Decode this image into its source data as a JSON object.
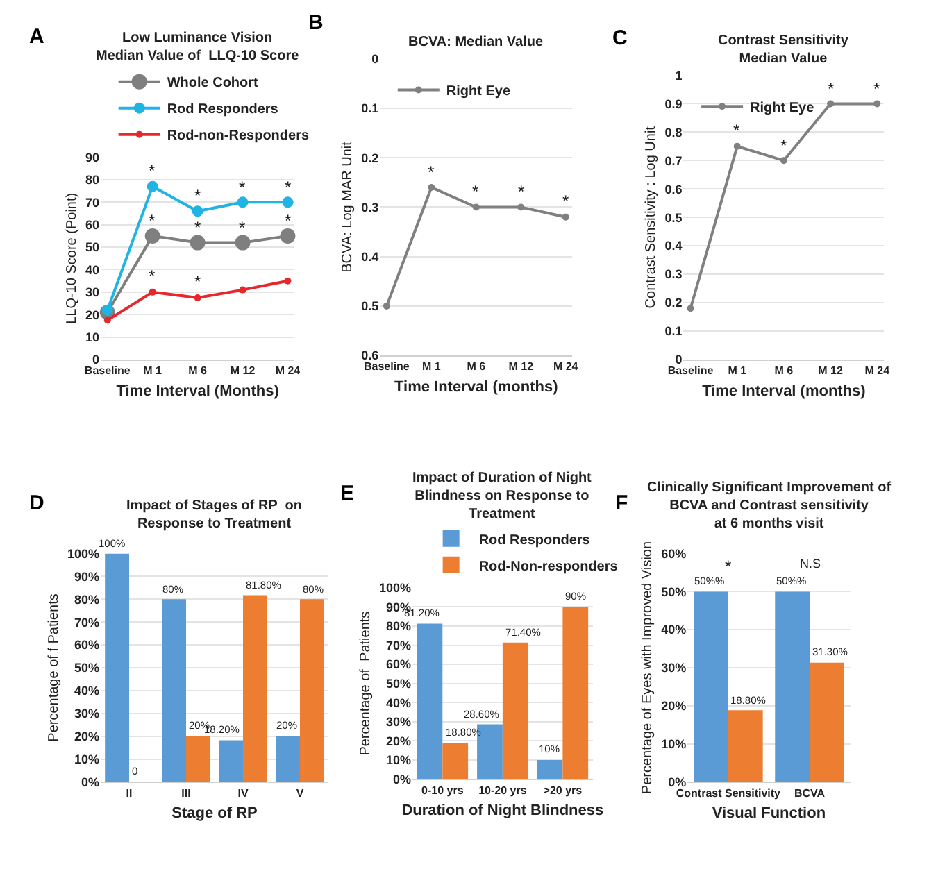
{
  "chart_data": [
    {
      "type": "line",
      "title": "Low Luminance Vision\nMedian Value of  LLQ-10 Score",
      "xlabel": "Time Interval (Months)",
      "ylabel": "LLQ-10 Score (Point)",
      "categories": [
        "Baseline",
        "M 1",
        "M 6",
        "M 12",
        "M 24"
      ],
      "ylim": [
        0,
        90
      ],
      "yticks": [
        0,
        10,
        20,
        30,
        40,
        50,
        60,
        70,
        80,
        90
      ],
      "grid": "y",
      "legend": "top",
      "marker": "circle",
      "line_style": "solid",
      "series": [
        {
          "name": "Whole Cohort",
          "color": "#7f7f7f",
          "values": [
            21,
            55,
            52,
            52,
            55
          ]
        },
        {
          "name": "Rod Responders",
          "color": "#1fb4e4",
          "values": [
            22,
            77,
            66,
            70,
            70
          ]
        },
        {
          "name": "Rod-non-Responders",
          "color": "#e8262b",
          "values": [
            17.5,
            30,
            27.5,
            31,
            35
          ]
        }
      ],
      "annotations": [
        "A",
        {
          "text": "*",
          "x": "M 1",
          "y": 77
        },
        {
          "text": "*",
          "x": "M 6",
          "y": 66
        },
        {
          "text": "*",
          "x": "M 12",
          "y": 70
        },
        {
          "text": "*",
          "x": "M 24",
          "y": 70
        },
        {
          "text": "*",
          "x": "M 1",
          "y": 55
        },
        {
          "text": "*",
          "x": "M 6",
          "y": 52
        },
        {
          "text": "*",
          "x": "M 12",
          "y": 52
        },
        {
          "text": "*",
          "x": "M 24",
          "y": 55
        },
        {
          "text": "*",
          "x": "M 1",
          "y": 30
        },
        {
          "text": "*",
          "x": "M 6",
          "y": 27.5
        }
      ]
    },
    {
      "type": "line",
      "title": "BCVA: Median Value",
      "xlabel": "Time Interval (months)",
      "ylabel": "BCVA: Log MAR Unit",
      "categories": [
        "Baseline",
        "M 1",
        "M 6",
        "M 12",
        "M 24"
      ],
      "ylim": [
        0.6,
        0
      ],
      "yticks": [
        0,
        0.1,
        0.2,
        0.3,
        0.4,
        0.5,
        0.6
      ],
      "grid": "y",
      "legend": "top left",
      "marker": "circle",
      "line_style": "solid",
      "series": [
        {
          "name": "Right Eye",
          "color": "#808080",
          "values": [
            0.5,
            0.26,
            0.3,
            0.3,
            0.32
          ]
        }
      ],
      "annotations": [
        "B",
        {
          "text": "*",
          "x": "M 1",
          "y": 0.26
        },
        {
          "text": "*",
          "x": "M 6",
          "y": 0.3
        },
        {
          "text": "*",
          "x": "M 12",
          "y": 0.3
        },
        {
          "text": "*",
          "x": "M 24",
          "y": 0.32
        }
      ]
    },
    {
      "type": "line",
      "title": "Contrast Sensitivity\nMedian Value",
      "xlabel": "Time Interval (months)",
      "ylabel": "Contrast Sensitivity : Log Unit",
      "categories": [
        "Baseline",
        "M 1",
        "M 6",
        "M 12",
        "M 24"
      ],
      "ylim": [
        0,
        1
      ],
      "yticks": [
        0,
        0.1,
        0.2,
        0.3,
        0.4,
        0.5,
        0.6,
        0.7,
        0.8,
        0.9,
        1
      ],
      "grid": "y",
      "legend": "top left",
      "marker": "circle",
      "line_style": "solid",
      "series": [
        {
          "name": "Right Eye",
          "color": "#808080",
          "values": [
            0.18,
            0.75,
            0.7,
            0.9,
            0.9
          ]
        }
      ],
      "annotations": [
        "C",
        {
          "text": "*",
          "x": "M 1",
          "y": 0.75
        },
        {
          "text": "*",
          "x": "M 6",
          "y": 0.7
        },
        {
          "text": "*",
          "x": "M 12",
          "y": 0.9
        },
        {
          "text": "*",
          "x": "M 24",
          "y": 0.9
        }
      ]
    },
    {
      "type": "bar",
      "title": "Impact of Stages of RP  on\nResponse to Treatment",
      "xlabel": "Stage of RP",
      "ylabel": "Percentage of f Patients",
      "categories": [
        "II",
        "III",
        "IV",
        "V"
      ],
      "ylim": [
        0,
        100
      ],
      "yticks": [
        {
          "value": 0,
          "label": "0%"
        },
        {
          "value": 10,
          "label": "10%"
        },
        {
          "value": 20,
          "label": "20%"
        },
        {
          "value": 30,
          "label": "30%"
        },
        {
          "value": 40,
          "label": "40%"
        },
        {
          "value": 50,
          "label": "50%"
        },
        {
          "value": 60,
          "label": "60%"
        },
        {
          "value": 70,
          "label": "70%"
        },
        {
          "value": 80,
          "label": "80%"
        },
        {
          "value": 90,
          "label": "90%"
        },
        {
          "value": 100,
          "label": "100%"
        }
      ],
      "grid": "y",
      "series": [
        {
          "color": "#5b9bd5",
          "values": [
            100,
            80,
            18.2,
            20
          ],
          "value_labels": [
            "100%",
            "80%",
            "18.20%",
            "20%"
          ]
        },
        {
          "color": "#ed7d31",
          "values": [
            0,
            20,
            81.8,
            80
          ],
          "value_labels": [
            "0",
            "20%",
            "81.80%",
            "80%"
          ]
        }
      ],
      "annotations": [
        "D"
      ]
    },
    {
      "type": "bar",
      "title": "Impact of Duration of Night\nBlindness on Response to\nTreatment",
      "xlabel": "Duration of Night Blindness",
      "ylabel": "Percentage of  Patients",
      "categories": [
        "0-10 yrs",
        "10-20 yrs",
        ">20 yrs"
      ],
      "ylim": [
        0,
        100
      ],
      "yticks": [
        {
          "value": 0,
          "label": "0%"
        },
        {
          "value": 10,
          "label": "10%"
        },
        {
          "value": 20,
          "label": "20%"
        },
        {
          "value": 30,
          "label": "30%"
        },
        {
          "value": 40,
          "label": "40%"
        },
        {
          "value": 50,
          "label": "50%"
        },
        {
          "value": 60,
          "label": "60%"
        },
        {
          "value": 70,
          "label": "70%"
        },
        {
          "value": 80,
          "label": "80%"
        },
        {
          "value": 90,
          "label": "90%"
        },
        {
          "value": 100,
          "label": "100%"
        }
      ],
      "grid": "y",
      "legend": "top",
      "series": [
        {
          "name": "Rod Responders",
          "color": "#5b9bd5",
          "values": [
            81.2,
            28.6,
            10
          ],
          "value_labels": [
            "81.20%",
            "28.60%",
            "10%"
          ]
        },
        {
          "name": "Rod-Non-responders",
          "color": "#ed7d31",
          "values": [
            18.8,
            71.4,
            90
          ],
          "value_labels": [
            "18.80%",
            "71.40%",
            "90%"
          ]
        }
      ],
      "annotations": [
        "E"
      ]
    },
    {
      "type": "bar",
      "title": "Clinically Significant Improvement of\nBCVA and Contrast sensitivity\nat 6 months visit",
      "xlabel": "Visual Function",
      "ylabel": "Percentage of Eyes with Improved Vision",
      "categories": [
        "Contrast Sensitivity",
        "BCVA"
      ],
      "ylim": [
        0,
        60
      ],
      "yticks": [
        {
          "value": 0,
          "label": "0%"
        },
        {
          "value": 10,
          "label": "10%"
        },
        {
          "value": 20,
          "label": "20%"
        },
        {
          "value": 30,
          "label": "30%"
        },
        {
          "value": 40,
          "label": "40%"
        },
        {
          "value": 50,
          "label": "50%"
        },
        {
          "value": 60,
          "label": "60%"
        }
      ],
      "grid": "y",
      "series": [
        {
          "color": "#5b9bd5",
          "values": [
            50,
            50
          ],
          "value_labels": [
            "50%%",
            "50%%"
          ]
        },
        {
          "color": "#ed7d31",
          "values": [
            18.8,
            31.3
          ],
          "value_labels": [
            "18.80%",
            "31.30%"
          ]
        }
      ],
      "annotations": [
        "F",
        "*",
        "N.S"
      ]
    }
  ]
}
